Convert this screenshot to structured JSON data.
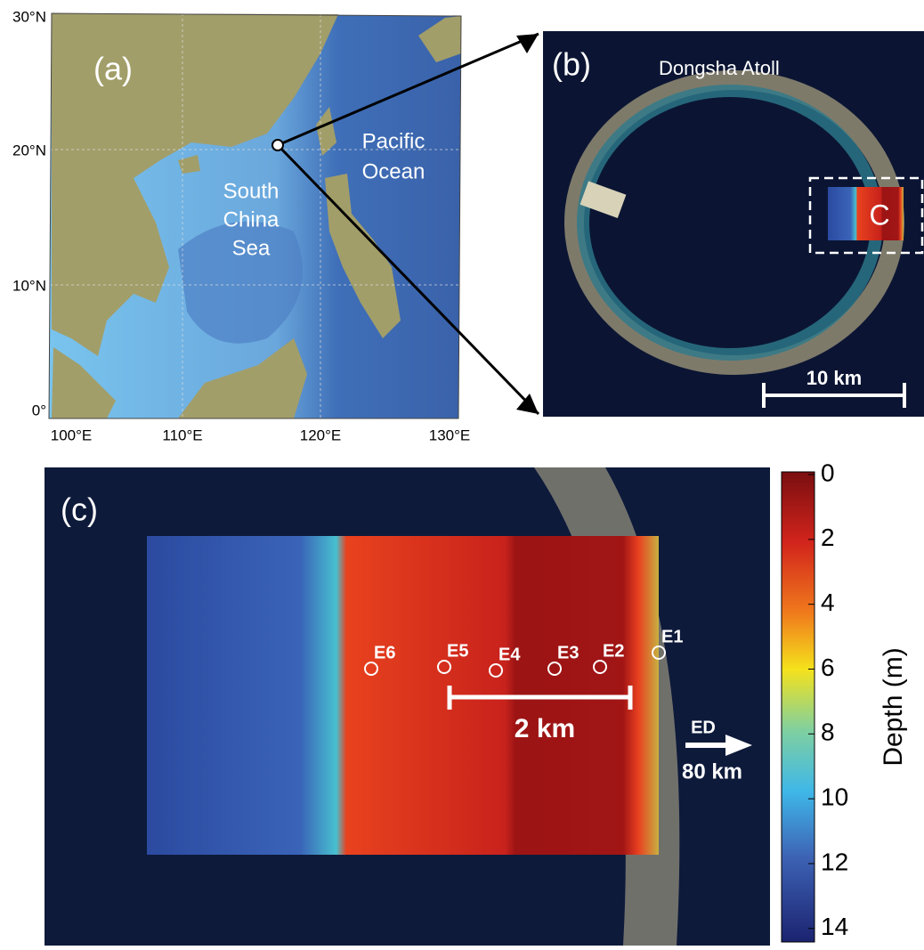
{
  "panels": {
    "a": {
      "label": "(a)",
      "lat_labels": [
        "30°N",
        "20°N",
        "10°N",
        "0°"
      ],
      "lon_labels": [
        "100°E",
        "110°E",
        "120°E",
        "130°E"
      ],
      "sea_label": [
        "South",
        "China",
        "Sea"
      ],
      "ocean_label": [
        "Pacific",
        "Ocean"
      ]
    },
    "b": {
      "label": "(b)",
      "title": "Dongsha Atoll",
      "box_label": "C",
      "scale_label": "10 km"
    },
    "c": {
      "label": "(c)",
      "stations": [
        "E1",
        "E2",
        "E3",
        "E4",
        "E5",
        "E6"
      ],
      "scale_label": "2 km",
      "arrow_label": "ED",
      "distance_label": "80 km"
    }
  },
  "colorbar": {
    "title": "Depth (m)",
    "lim": [
      0,
      14.5
    ],
    "ticks": [
      0,
      2,
      4,
      6,
      8,
      10,
      12,
      14
    ]
  }
}
